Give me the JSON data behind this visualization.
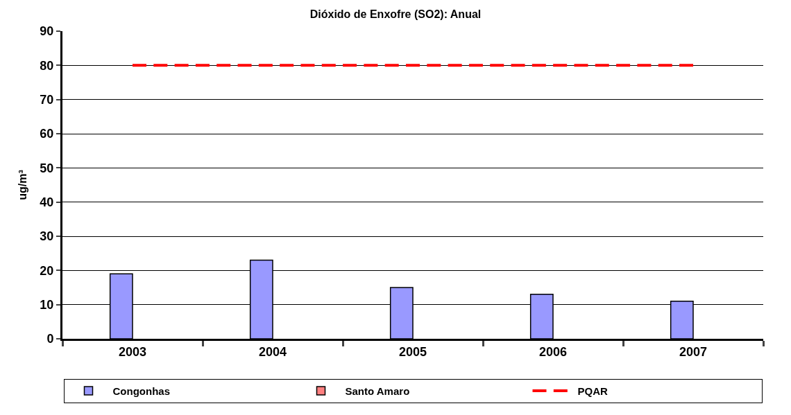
{
  "chart_data": {
    "type": "bar",
    "title": "Dióxido de Enxofre (SO2): Anual",
    "ylabel": "ug/m³",
    "categories": [
      "2003",
      "2004",
      "2005",
      "2006",
      "2007"
    ],
    "series": [
      {
        "name": "Congonhas",
        "color": "#9999ff",
        "values": [
          19,
          23,
          15,
          13,
          11
        ]
      },
      {
        "name": "Santo Amaro",
        "color": "#ff8080",
        "values": [
          null,
          null,
          null,
          null,
          null
        ]
      },
      {
        "name": "PQAR",
        "type": "line",
        "color": "#ff0000",
        "line_style": "dashed",
        "values": [
          80,
          80,
          80,
          80,
          80
        ]
      }
    ],
    "ylim": [
      0,
      90
    ],
    "yticks": [
      0,
      10,
      20,
      30,
      40,
      50,
      60,
      70,
      80,
      90
    ],
    "grid": "y",
    "legend": "bottom"
  }
}
